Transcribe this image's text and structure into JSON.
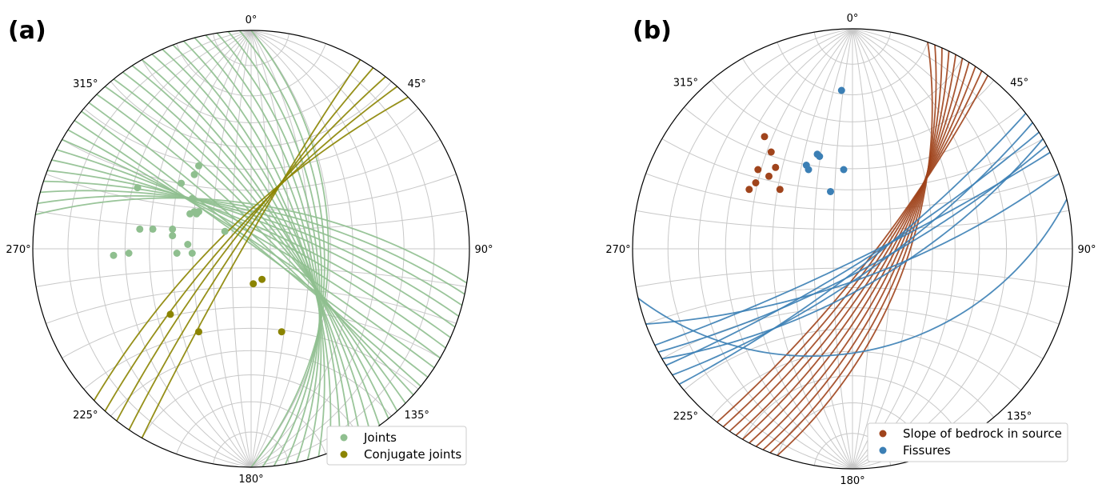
{
  "chart_data": [
    {
      "type": "scatter",
      "panel_label": "(a)",
      "projection": "stereonet",
      "direction_labels": [
        "0°",
        "45°",
        "90°",
        "135°",
        "180°",
        "225°",
        "270°",
        "315°"
      ],
      "series": [
        {
          "name": "Joints",
          "color": "#8fbf8f",
          "poles": [
            {
              "x": -0.52,
              "y": 0.28
            },
            {
              "x": -0.32,
              "y": 0.3
            },
            {
              "x": -0.26,
              "y": 0.34
            },
            {
              "x": -0.24,
              "y": 0.38
            },
            {
              "x": -0.27,
              "y": 0.23
            },
            {
              "x": -0.28,
              "y": 0.16
            },
            {
              "x": -0.26,
              "y": 0.17
            },
            {
              "x": -0.24,
              "y": 0.17
            },
            {
              "x": -0.25,
              "y": 0.16
            },
            {
              "x": -0.51,
              "y": 0.09
            },
            {
              "x": -0.45,
              "y": 0.09
            },
            {
              "x": -0.36,
              "y": 0.09
            },
            {
              "x": -0.36,
              "y": 0.06
            },
            {
              "x": -0.12,
              "y": 0.08
            },
            {
              "x": -0.29,
              "y": 0.02
            },
            {
              "x": -0.34,
              "y": -0.02
            },
            {
              "x": -0.27,
              "y": -0.02
            },
            {
              "x": -0.56,
              "y": -0.02
            },
            {
              "x": -0.63,
              "y": -0.03
            }
          ],
          "planes": [
            {
              "strike": 315,
              "dip": 80
            },
            {
              "strike": 318,
              "dip": 77
            },
            {
              "strike": 321,
              "dip": 75
            },
            {
              "strike": 324,
              "dip": 73
            },
            {
              "strike": 327,
              "dip": 71
            },
            {
              "strike": 330,
              "dip": 70
            },
            {
              "strike": 333,
              "dip": 68
            },
            {
              "strike": 336,
              "dip": 66
            },
            {
              "strike": 339,
              "dip": 65
            },
            {
              "strike": 342,
              "dip": 63
            },
            {
              "strike": 345,
              "dip": 61
            },
            {
              "strike": 348,
              "dip": 59
            },
            {
              "strike": 351,
              "dip": 57
            },
            {
              "strike": 354,
              "dip": 55
            },
            {
              "strike": 357,
              "dip": 53
            },
            {
              "strike": 0,
              "dip": 51
            },
            {
              "strike": 312,
              "dip": 84
            },
            {
              "strike": 309,
              "dip": 87
            },
            {
              "strike": 306,
              "dip": 88
            },
            {
              "strike": 303,
              "dip": 86
            },
            {
              "strike": 300,
              "dip": 83
            },
            {
              "strike": 297,
              "dip": 80
            },
            {
              "strike": 294,
              "dip": 78
            },
            {
              "strike": 291,
              "dip": 75
            },
            {
              "strike": 288,
              "dip": 73
            },
            {
              "strike": 285,
              "dip": 71
            },
            {
              "strike": 282,
              "dip": 69
            },
            {
              "strike": 279,
              "dip": 67
            }
          ]
        },
        {
          "name": "Conjugate joints",
          "color": "#8b8400",
          "poles": [
            {
              "x": 0.01,
              "y": -0.16
            },
            {
              "x": 0.05,
              "y": -0.14
            },
            {
              "x": -0.37,
              "y": -0.3
            },
            {
              "x": -0.24,
              "y": -0.38
            },
            {
              "x": 0.14,
              "y": -0.38
            }
          ],
          "planes": [
            {
              "strike": 210,
              "dip": 86
            },
            {
              "strike": 214,
              "dip": 83
            },
            {
              "strike": 218,
              "dip": 80
            },
            {
              "strike": 222,
              "dip": 78
            },
            {
              "strike": 226,
              "dip": 75
            }
          ]
        }
      ],
      "legend": {
        "position": "lower-right",
        "entries": [
          "Joints",
          "Conjugate joints"
        ]
      }
    },
    {
      "type": "scatter",
      "panel_label": "(b)",
      "projection": "stereonet",
      "direction_labels": [
        "0°",
        "45°",
        "90°",
        "135°",
        "180°",
        "225°",
        "270°",
        "315°"
      ],
      "series": [
        {
          "name": "Slope of bedrock in source",
          "color": "#a0441c",
          "poles": [
            {
              "x": -0.4,
              "y": 0.51
            },
            {
              "x": -0.37,
              "y": 0.44
            },
            {
              "x": -0.35,
              "y": 0.37
            },
            {
              "x": -0.43,
              "y": 0.36
            },
            {
              "x": -0.38,
              "y": 0.33
            },
            {
              "x": -0.44,
              "y": 0.3
            },
            {
              "x": -0.47,
              "y": 0.27
            },
            {
              "x": -0.33,
              "y": 0.27
            }
          ],
          "planes": [
            {
              "strike": 20,
              "dip": 62
            },
            {
              "strike": 22,
              "dip": 64
            },
            {
              "strike": 24,
              "dip": 66
            },
            {
              "strike": 26,
              "dip": 68
            },
            {
              "strike": 28,
              "dip": 70
            },
            {
              "strike": 30,
              "dip": 72
            },
            {
              "strike": 32,
              "dip": 74
            },
            {
              "strike": 34,
              "dip": 76
            },
            {
              "strike": 36,
              "dip": 78
            },
            {
              "strike": 38,
              "dip": 80
            }
          ]
        },
        {
          "name": "Fissures",
          "color": "#3b7fb5",
          "poles": [
            {
              "x": -0.05,
              "y": 0.72
            },
            {
              "x": -0.16,
              "y": 0.43
            },
            {
              "x": -0.15,
              "y": 0.42
            },
            {
              "x": -0.21,
              "y": 0.38
            },
            {
              "x": -0.2,
              "y": 0.36
            },
            {
              "x": -0.04,
              "y": 0.36
            },
            {
              "x": -0.1,
              "y": 0.26
            }
          ],
          "planes": [
            {
              "strike": 70,
              "dip": 74
            },
            {
              "strike": 62,
              "dip": 78
            },
            {
              "strike": 58,
              "dip": 82
            },
            {
              "strike": 64,
              "dip": 84
            },
            {
              "strike": 55,
              "dip": 76
            },
            {
              "strike": 52,
              "dip": 80
            },
            {
              "strike": 60,
              "dip": 70
            },
            {
              "strike": 77,
              "dip": 40
            }
          ]
        }
      ],
      "legend": {
        "position": "lower-right",
        "entries": [
          "Slope of bedrock in source",
          "Fissures"
        ]
      }
    }
  ]
}
